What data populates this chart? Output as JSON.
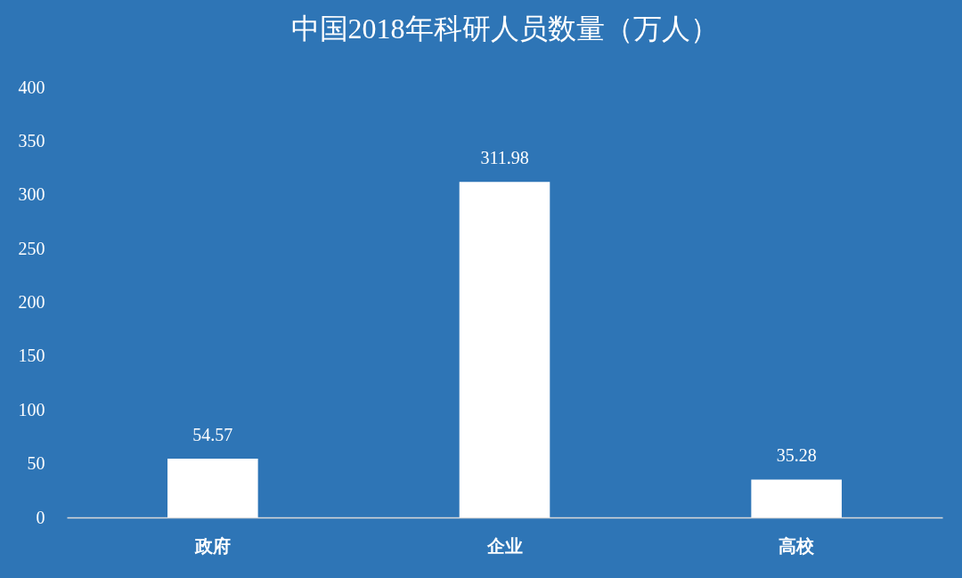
{
  "chart_data": {
    "type": "bar",
    "title": "中国2018年科研人员数量（万人）",
    "categories": [
      "政府",
      "企业",
      "高校"
    ],
    "values": [
      54.57,
      311.98,
      35.28
    ],
    "color": "#ffffff",
    "ylim": [
      0,
      400
    ],
    "yticks": [
      0,
      50,
      100,
      150,
      200,
      250,
      300,
      350,
      400
    ],
    "grid": false,
    "data_labels": true
  }
}
